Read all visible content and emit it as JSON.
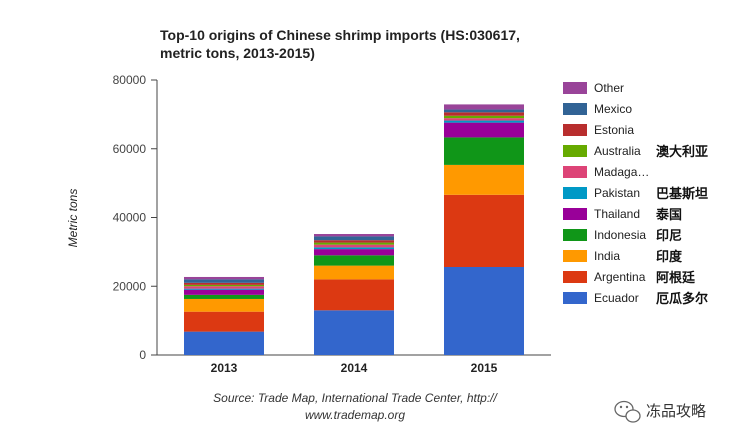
{
  "chart_data": {
    "type": "bar",
    "stacked": true,
    "title": [
      "Top-10 origins of Chinese shrimp imports (HS:030617,",
      "metric tons, 2013-2015)"
    ],
    "ylabel": "Metric tons",
    "xlabel": "",
    "ylim": [
      0,
      80000
    ],
    "yticks": [
      0,
      20000,
      40000,
      60000,
      80000
    ],
    "categories": [
      "2013",
      "2014",
      "2015"
    ],
    "grid": false,
    "legend_position": "right",
    "series": [
      {
        "name": "Ecuador",
        "cn": "厄瓜多尔",
        "color": "#3366cc",
        "values": [
          6800,
          13000,
          25600
        ]
      },
      {
        "name": "Argentina",
        "cn": "阿根廷",
        "color": "#dc3912",
        "values": [
          5800,
          9000,
          21000
        ]
      },
      {
        "name": "India",
        "cn": "印度",
        "color": "#ff9900",
        "values": [
          3700,
          4000,
          8700
        ]
      },
      {
        "name": "Indonesia",
        "cn": "印尼",
        "color": "#109618",
        "values": [
          1200,
          3000,
          8000
        ]
      },
      {
        "name": "Thailand",
        "cn": "泰国",
        "color": "#990099",
        "values": [
          1500,
          1800,
          4300
        ]
      },
      {
        "name": "Pakistan",
        "cn": "巴基斯坦",
        "color": "#0099c6",
        "values": [
          300,
          500,
          600
        ]
      },
      {
        "name": "Madaga…",
        "cn": "",
        "color": "#dd4477",
        "values": [
          700,
          800,
          700
        ]
      },
      {
        "name": "Australia",
        "cn": "澳大利亚",
        "color": "#66aa00",
        "values": [
          400,
          600,
          700
        ]
      },
      {
        "name": "Estonia",
        "cn": "",
        "color": "#b82e2e",
        "values": [
          600,
          700,
          1000
        ]
      },
      {
        "name": "Mexico",
        "cn": "",
        "color": "#316395",
        "values": [
          1000,
          1100,
          800
        ]
      },
      {
        "name": "Other",
        "cn": "",
        "color": "#994499",
        "values": [
          700,
          700,
          1500
        ]
      }
    ]
  },
  "source": [
    "Source: Trade Map, International Trade Center, http://",
    "www.trademap.org"
  ],
  "watermark": "冻品攻略"
}
